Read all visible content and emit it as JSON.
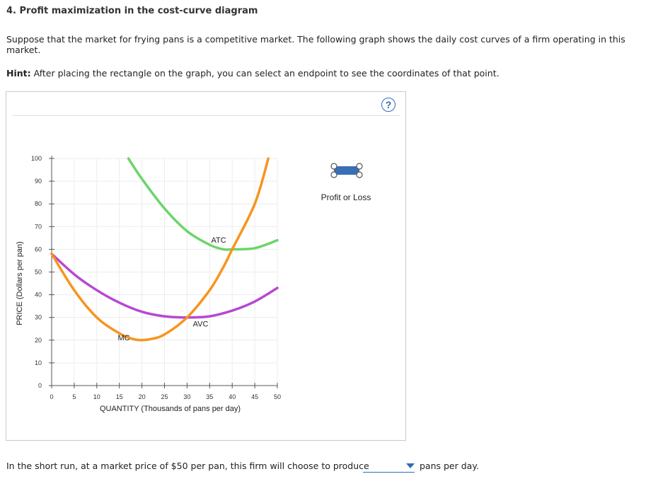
{
  "question": {
    "title": "4. Profit maximization in the cost-curve diagram",
    "text": "Suppose that the market for frying pans is a competitive market. The following graph shows the daily cost curves of a firm operating in this market.",
    "hint_label": "Hint:",
    "hint_text": " After placing the rectangle on the graph, you can select an endpoint to see the coordinates of that point."
  },
  "graph_panel": {
    "help_label": "?",
    "tool": {
      "label": "Profit or Loss",
      "icon": "rectangle-tool-icon",
      "color": "#3a6fb5"
    }
  },
  "chart_data": {
    "type": "line",
    "xlabel": "QUANTITY (Thousands of pans per day)",
    "ylabel": "PRICE (Dollars per pan)",
    "xlim": [
      0,
      50
    ],
    "ylim": [
      0,
      100
    ],
    "x_ticks": [
      0,
      5,
      10,
      15,
      20,
      25,
      30,
      35,
      40,
      45,
      50
    ],
    "y_ticks": [
      0,
      10,
      20,
      30,
      40,
      50,
      60,
      70,
      80,
      90,
      100
    ],
    "grid": true,
    "series": [
      {
        "name": "ATC",
        "color": "#6ad56a",
        "x": [
          17,
          20,
          25,
          30,
          35,
          38,
          40,
          45,
          50
        ],
        "y": [
          100,
          91,
          78,
          68,
          62,
          60,
          60,
          60.5,
          64
        ]
      },
      {
        "name": "AVC",
        "color": "#b748d1",
        "x": [
          0,
          5,
          10,
          15,
          20,
          25,
          30,
          35,
          40,
          45,
          50
        ],
        "y": [
          58,
          49,
          42,
          36.5,
          32.5,
          30.5,
          30,
          30.5,
          33,
          37,
          43
        ]
      },
      {
        "name": "MC",
        "color": "#f7941e",
        "x": [
          0,
          5,
          10,
          15,
          18,
          20,
          22,
          25,
          30,
          35,
          38,
          40,
          45,
          48
        ],
        "y": [
          58,
          42,
          30,
          23,
          20.5,
          20,
          20.5,
          22.5,
          30,
          42,
          52,
          60,
          80,
          100
        ]
      }
    ],
    "labels": [
      {
        "text": "ATC",
        "series": "ATC",
        "x": 37,
        "y": 63
      },
      {
        "text": "AVC",
        "series": "AVC",
        "x": 33,
        "y": 26
      },
      {
        "text": "MC",
        "series": "MC",
        "x": 16,
        "y": 20
      }
    ]
  },
  "answer": {
    "prefix": "In the short run, at a market price of $50 per pan, this firm will choose to produce",
    "selected": "",
    "suffix": "pans per day."
  }
}
